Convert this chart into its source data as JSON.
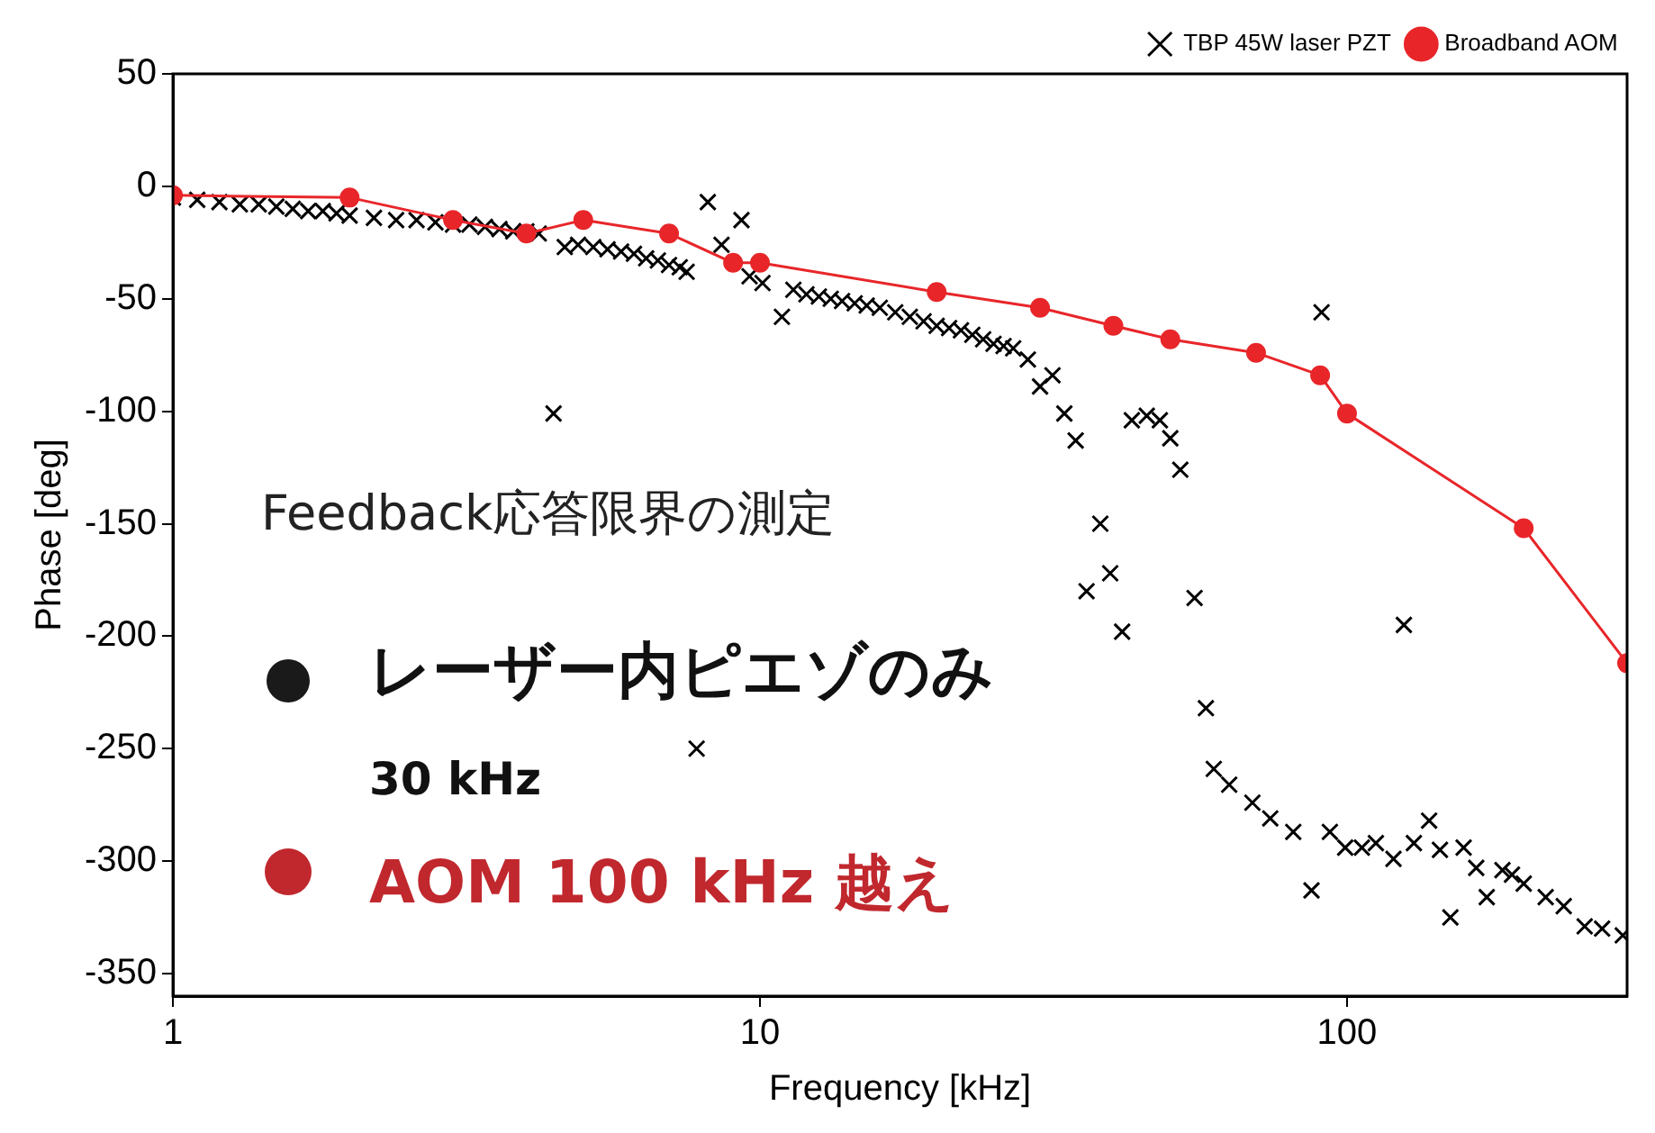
{
  "chart_data": {
    "type": "scatter",
    "xlabel": "Frequency [kHz]",
    "ylabel": "Phase [deg]",
    "log": "x",
    "xlim": [
      1,
      300
    ],
    "xticks": [
      1,
      10,
      100
    ],
    "ylim": [
      -360,
      50
    ],
    "yticks": [
      50,
      0,
      -50,
      -100,
      -150,
      -200,
      -250,
      -300,
      -350
    ],
    "grid": false,
    "legend": "top right",
    "annotations": [
      "Feedback応答限界の測定",
      "レーザー内ピエゾのみ",
      "30 kHz",
      "AOM 100 kHz 越え"
    ],
    "series": [
      {
        "name": "TBP 45W laser PZT",
        "marker": "cross",
        "color": "#000000",
        "x": [
          1,
          1.1,
          1.2,
          1.3,
          1.4,
          1.5,
          1.6,
          1.7,
          1.8,
          1.9,
          2.0,
          2.2,
          2.4,
          2.6,
          2.8,
          3.0,
          3.2,
          3.4,
          3.6,
          3.8,
          4.0,
          4.2,
          4.45,
          4.65,
          4.9,
          5.2,
          5.5,
          5.8,
          6.1,
          6.4,
          6.7,
          7.0,
          7.3,
          7.5,
          7.8,
          8.15,
          8.6,
          9.3,
          9.6,
          10.1,
          10.9,
          11.4,
          12,
          12.6,
          13.2,
          13.8,
          14.5,
          15.2,
          16,
          17,
          18,
          19,
          20,
          21,
          22,
          23,
          24,
          25,
          26,
          27,
          28.6,
          30,
          31.5,
          33,
          34.5,
          36,
          38,
          39.5,
          41.4,
          43,
          45.6,
          48,
          50,
          52,
          55,
          57.5,
          59.3,
          63,
          69,
          74,
          81,
          87,
          90.5,
          93.5,
          99.3,
          106,
          112,
          120,
          125,
          130,
          138,
          144,
          150,
          158,
          166,
          173,
          184,
          191,
          200,
          218,
          234,
          254,
          272,
          295
        ],
        "values": [
          -5,
          -6,
          -7,
          -8,
          -8,
          -9,
          -10,
          -11,
          -11,
          -12,
          -13,
          -14,
          -15,
          -15,
          -16,
          -17,
          -17,
          -18,
          -19,
          -20,
          -20,
          -21,
          -101,
          -27,
          -26,
          -27,
          -28,
          -29,
          -30,
          -32,
          -33,
          -35,
          -36,
          -38,
          -250,
          -7,
          -26,
          -15,
          -40,
          -43,
          -58,
          -46,
          -48,
          -49,
          -50,
          -51,
          -52,
          -53,
          -54,
          -56,
          -58,
          -60,
          -62,
          -63,
          -64,
          -66,
          -68,
          -70,
          -71,
          -72,
          -77,
          -89,
          -84,
          -101,
          -113,
          -180,
          -150,
          -172,
          -198,
          -104,
          -102,
          -104,
          -112,
          -126,
          -183,
          -232,
          -259,
          -266,
          -274,
          -281,
          -287,
          -313,
          -56,
          -287,
          -294,
          -294,
          -292,
          -299,
          -195,
          -292,
          -282,
          -295,
          -325,
          -294,
          -303,
          -316,
          -304,
          -306,
          -310,
          -316,
          -320,
          -329,
          -330,
          -333
        ]
      },
      {
        "name": "Broadband AOM",
        "type": "line",
        "marker": "circle",
        "line_style": "solid",
        "color": "#e8262a",
        "x": [
          1,
          2,
          3,
          4,
          5,
          7,
          9,
          10,
          20,
          30,
          40,
          50,
          70,
          90,
          100,
          200,
          300
        ],
        "values": [
          -4,
          -5,
          -15,
          -21,
          -15,
          -21,
          -34,
          -34,
          -47,
          -54,
          -62,
          -68,
          -74,
          -84,
          -101,
          -152,
          -212
        ]
      }
    ]
  }
}
